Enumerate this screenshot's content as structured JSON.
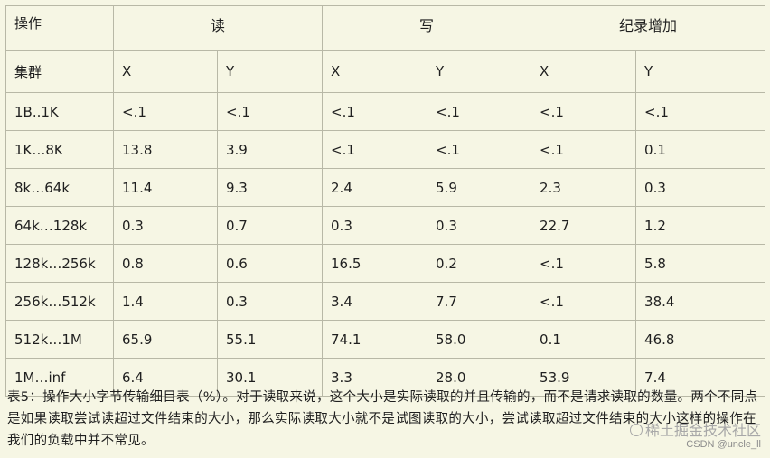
{
  "table": {
    "header": {
      "op": "操作",
      "groups": [
        "读",
        "写",
        "纪录增加"
      ]
    },
    "subheader": {
      "cluster": "集群",
      "cols": [
        "X",
        "Y",
        "X",
        "Y",
        "X",
        "Y"
      ]
    },
    "rows": [
      {
        "label": "1B..1K",
        "cells": [
          "<.1",
          "<.1",
          "<.1",
          "<.1",
          "<.1",
          "<.1"
        ]
      },
      {
        "label": "1K…8K",
        "cells": [
          "13.8",
          "3.9",
          "<.1",
          "<.1",
          "<.1",
          "0.1"
        ]
      },
      {
        "label": "8k…64k",
        "cells": [
          "11.4",
          "9.3",
          "2.4",
          "5.9",
          "2.3",
          "0.3"
        ]
      },
      {
        "label": "64k…128k",
        "cells": [
          "0.3",
          "0.7",
          "0.3",
          "0.3",
          "22.7",
          "1.2"
        ]
      },
      {
        "label": "128k…256k",
        "cells": [
          "0.8",
          "0.6",
          "16.5",
          "0.2",
          "<.1",
          "5.8"
        ]
      },
      {
        "label": "256k…512k",
        "cells": [
          "1.4",
          "0.3",
          "3.4",
          "7.7",
          "<.1",
          "38.4"
        ]
      },
      {
        "label": "512k…1M",
        "cells": [
          "65.9",
          "55.1",
          "74.1",
          "58.0",
          "0.1",
          "46.8"
        ]
      },
      {
        "label": "1M…inf",
        "cells": [
          "6.4",
          "30.1",
          "3.3",
          "28.0",
          "53.9",
          "7.4"
        ]
      }
    ]
  },
  "caption": "表5：操作大小字节传输细目表（%）。对于读取来说，这个大小是实际读取的并且传输的，而不是请求读取的数量。两个不同点是如果读取尝试读超过文件结束的大小，那么实际读取大小就不是试图读取的大小，尝试读取超过文件结束的大小这样的操作在我们的负载中并不常见。",
  "watermark": {
    "main": "稀土掘金技术社区",
    "sub": "CSDN @uncle_ll"
  }
}
